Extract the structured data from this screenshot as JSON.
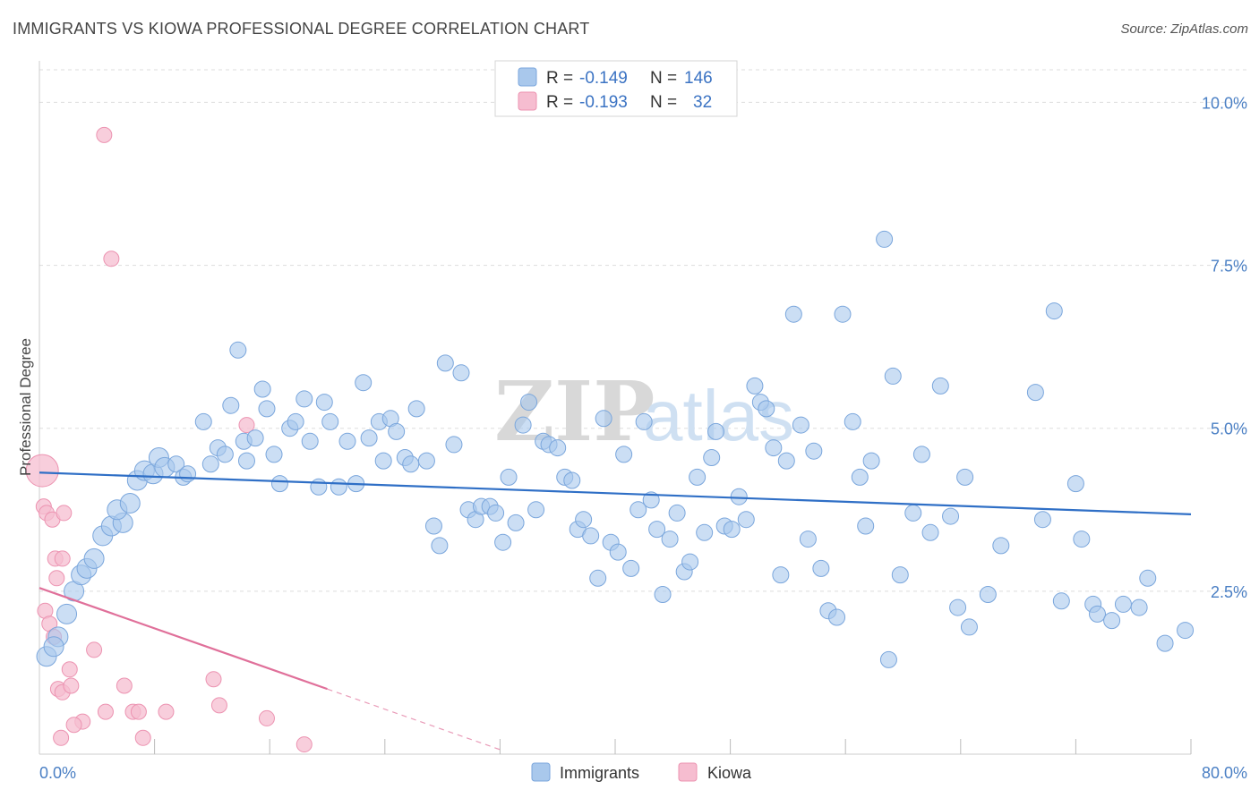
{
  "title": "IMMIGRANTS VS KIOWA PROFESSIONAL DEGREE CORRELATION CHART",
  "source": "Source: ZipAtlas.com",
  "watermark": {
    "zip": "ZIP",
    "atlas": "atlas"
  },
  "colors": {
    "immigrants_fill": "#a9c8ec",
    "immigrants_stroke": "#7aa6dc",
    "immigrants_line": "#2f6fc6",
    "kiowa_fill": "#f6bdd0",
    "kiowa_stroke": "#ec93b1",
    "kiowa_line": "#e0709a",
    "grid": "#dddddd",
    "tick_label": "#4a7fc4"
  },
  "legend": {
    "rows": [
      {
        "r_label": "R =",
        "r_value": "-0.149",
        "n_label": "N =",
        "n_value": "146"
      },
      {
        "r_label": "R =",
        "r_value": "-0.193",
        "n_label": "N =",
        "n_value": "32"
      }
    ]
  },
  "chart_data": {
    "type": "scatter",
    "title": "IMMIGRANTS VS KIOWA PROFESSIONAL DEGREE CORRELATION CHART",
    "xlabel": "",
    "ylabel": "Professional Degree",
    "xlim": [
      0,
      80
    ],
    "ylim": [
      0,
      10.5
    ],
    "x_tick_labels": [
      "0.0%",
      "80.0%"
    ],
    "y_ticks": [
      2.5,
      5.0,
      7.5,
      10.0
    ],
    "y_tick_labels": [
      "2.5%",
      "5.0%",
      "7.5%",
      "10.0%"
    ],
    "grid": "horizontal dashed",
    "legend_placement": "top-center",
    "series": [
      {
        "name": "Immigrants",
        "r": -0.149,
        "n": 146,
        "trend": {
          "x0": 0,
          "y0": 4.32,
          "x1": 80,
          "y1": 3.68,
          "extrapolated_to": 80
        },
        "points": [
          [
            0.5,
            1.5
          ],
          [
            1.3,
            1.8
          ],
          [
            1.0,
            1.65
          ],
          [
            1.9,
            2.15
          ],
          [
            2.4,
            2.5
          ],
          [
            2.9,
            2.75
          ],
          [
            3.3,
            2.85
          ],
          [
            3.8,
            3.0
          ],
          [
            4.4,
            3.35
          ],
          [
            5.0,
            3.5
          ],
          [
            5.8,
            3.55
          ],
          [
            5.4,
            3.75
          ],
          [
            6.3,
            3.85
          ],
          [
            6.8,
            4.2
          ],
          [
            7.3,
            4.35
          ],
          [
            7.9,
            4.3
          ],
          [
            8.3,
            4.55
          ],
          [
            8.7,
            4.4
          ],
          [
            9.5,
            4.45
          ],
          [
            10.0,
            4.25
          ],
          [
            10.3,
            4.3
          ],
          [
            11.4,
            5.1
          ],
          [
            11.9,
            4.45
          ],
          [
            12.4,
            4.7
          ],
          [
            12.9,
            4.6
          ],
          [
            13.3,
            5.35
          ],
          [
            13.8,
            6.2
          ],
          [
            14.2,
            4.8
          ],
          [
            14.4,
            4.5
          ],
          [
            15.0,
            4.85
          ],
          [
            15.5,
            5.6
          ],
          [
            15.8,
            5.3
          ],
          [
            16.3,
            4.6
          ],
          [
            16.7,
            4.15
          ],
          [
            17.4,
            5.0
          ],
          [
            17.8,
            5.1
          ],
          [
            18.4,
            5.45
          ],
          [
            18.8,
            4.8
          ],
          [
            19.4,
            4.1
          ],
          [
            19.8,
            5.4
          ],
          [
            20.2,
            5.1
          ],
          [
            20.8,
            4.1
          ],
          [
            21.4,
            4.8
          ],
          [
            22.0,
            4.15
          ],
          [
            22.5,
            5.7
          ],
          [
            22.9,
            4.85
          ],
          [
            23.6,
            5.1
          ],
          [
            23.9,
            4.5
          ],
          [
            24.4,
            5.15
          ],
          [
            24.8,
            4.95
          ],
          [
            25.4,
            4.55
          ],
          [
            25.8,
            4.45
          ],
          [
            26.2,
            5.3
          ],
          [
            26.9,
            4.5
          ],
          [
            27.4,
            3.5
          ],
          [
            27.8,
            3.2
          ],
          [
            28.2,
            6.0
          ],
          [
            28.8,
            4.75
          ],
          [
            29.3,
            5.85
          ],
          [
            29.8,
            3.75
          ],
          [
            30.3,
            3.6
          ],
          [
            30.7,
            3.8
          ],
          [
            31.3,
            3.8
          ],
          [
            31.7,
            3.7
          ],
          [
            32.2,
            3.25
          ],
          [
            32.6,
            4.25
          ],
          [
            33.1,
            3.55
          ],
          [
            33.6,
            5.05
          ],
          [
            34.0,
            5.4
          ],
          [
            34.5,
            3.75
          ],
          [
            35.0,
            4.8
          ],
          [
            35.4,
            4.75
          ],
          [
            36.0,
            4.7
          ],
          [
            36.5,
            4.25
          ],
          [
            37.0,
            4.2
          ],
          [
            37.4,
            3.45
          ],
          [
            37.8,
            3.6
          ],
          [
            38.3,
            3.35
          ],
          [
            38.8,
            2.7
          ],
          [
            39.2,
            5.15
          ],
          [
            39.7,
            3.25
          ],
          [
            40.2,
            3.1
          ],
          [
            40.6,
            4.6
          ],
          [
            41.1,
            2.85
          ],
          [
            41.6,
            3.75
          ],
          [
            42.0,
            5.1
          ],
          [
            42.5,
            3.9
          ],
          [
            42.9,
            3.45
          ],
          [
            43.3,
            2.45
          ],
          [
            43.8,
            3.3
          ],
          [
            44.3,
            3.7
          ],
          [
            44.8,
            2.8
          ],
          [
            45.2,
            2.95
          ],
          [
            45.7,
            4.25
          ],
          [
            46.2,
            3.4
          ],
          [
            46.7,
            4.55
          ],
          [
            47.0,
            4.95
          ],
          [
            47.6,
            3.5
          ],
          [
            48.1,
            3.45
          ],
          [
            48.6,
            3.95
          ],
          [
            49.1,
            3.6
          ],
          [
            49.7,
            5.65
          ],
          [
            50.1,
            5.4
          ],
          [
            50.5,
            5.3
          ],
          [
            51.0,
            4.7
          ],
          [
            51.5,
            2.75
          ],
          [
            51.9,
            4.5
          ],
          [
            52.4,
            6.75
          ],
          [
            52.9,
            5.05
          ],
          [
            53.4,
            3.3
          ],
          [
            53.8,
            4.65
          ],
          [
            54.3,
            2.85
          ],
          [
            54.8,
            2.2
          ],
          [
            55.4,
            2.1
          ],
          [
            55.8,
            6.75
          ],
          [
            56.5,
            5.1
          ],
          [
            57.0,
            4.25
          ],
          [
            57.4,
            3.5
          ],
          [
            57.8,
            4.5
          ],
          [
            58.7,
            7.9
          ],
          [
            59.0,
            1.45
          ],
          [
            59.3,
            5.8
          ],
          [
            59.8,
            2.75
          ],
          [
            60.7,
            3.7
          ],
          [
            61.3,
            4.6
          ],
          [
            61.9,
            3.4
          ],
          [
            62.6,
            5.65
          ],
          [
            63.3,
            3.65
          ],
          [
            63.8,
            2.25
          ],
          [
            64.3,
            4.25
          ],
          [
            64.6,
            1.95
          ],
          [
            65.9,
            2.45
          ],
          [
            66.8,
            3.2
          ],
          [
            69.2,
            5.55
          ],
          [
            69.7,
            3.6
          ],
          [
            70.5,
            6.8
          ],
          [
            71.0,
            2.35
          ],
          [
            72.0,
            4.15
          ],
          [
            72.4,
            3.3
          ],
          [
            73.2,
            2.3
          ],
          [
            73.5,
            2.15
          ],
          [
            74.5,
            2.05
          ],
          [
            75.3,
            2.3
          ],
          [
            76.4,
            2.25
          ],
          [
            77.0,
            2.7
          ],
          [
            78.2,
            1.7
          ],
          [
            79.6,
            1.9
          ]
        ]
      },
      {
        "name": "Kiowa",
        "r": -0.193,
        "n": 32,
        "trend": {
          "x0": 0,
          "y0": 2.55,
          "x1": 20,
          "y1": 1.0,
          "extrapolated_to": 32
        },
        "points": [
          [
            0.2,
            4.35
          ],
          [
            0.3,
            3.8
          ],
          [
            0.5,
            3.7
          ],
          [
            0.9,
            3.6
          ],
          [
            1.7,
            3.7
          ],
          [
            1.1,
            3.0
          ],
          [
            1.6,
            3.0
          ],
          [
            1.2,
            2.7
          ],
          [
            0.4,
            2.2
          ],
          [
            0.7,
            2.0
          ],
          [
            1.0,
            1.8
          ],
          [
            3.8,
            1.6
          ],
          [
            2.1,
            1.3
          ],
          [
            1.3,
            1.0
          ],
          [
            1.6,
            0.95
          ],
          [
            2.2,
            1.05
          ],
          [
            3.0,
            0.5
          ],
          [
            2.4,
            0.45
          ],
          [
            1.5,
            0.25
          ],
          [
            4.6,
            0.65
          ],
          [
            5.9,
            1.05
          ],
          [
            6.5,
            0.65
          ],
          [
            6.9,
            0.65
          ],
          [
            7.2,
            0.25
          ],
          [
            8.8,
            0.65
          ],
          [
            12.1,
            1.15
          ],
          [
            12.5,
            0.75
          ],
          [
            14.4,
            5.05
          ],
          [
            15.8,
            0.55
          ],
          [
            18.4,
            0.15
          ],
          [
            4.5,
            9.5
          ],
          [
            5.0,
            7.6
          ]
        ]
      }
    ]
  },
  "bottom_legend": [
    {
      "label": "Immigrants"
    },
    {
      "label": "Kiowa"
    }
  ]
}
